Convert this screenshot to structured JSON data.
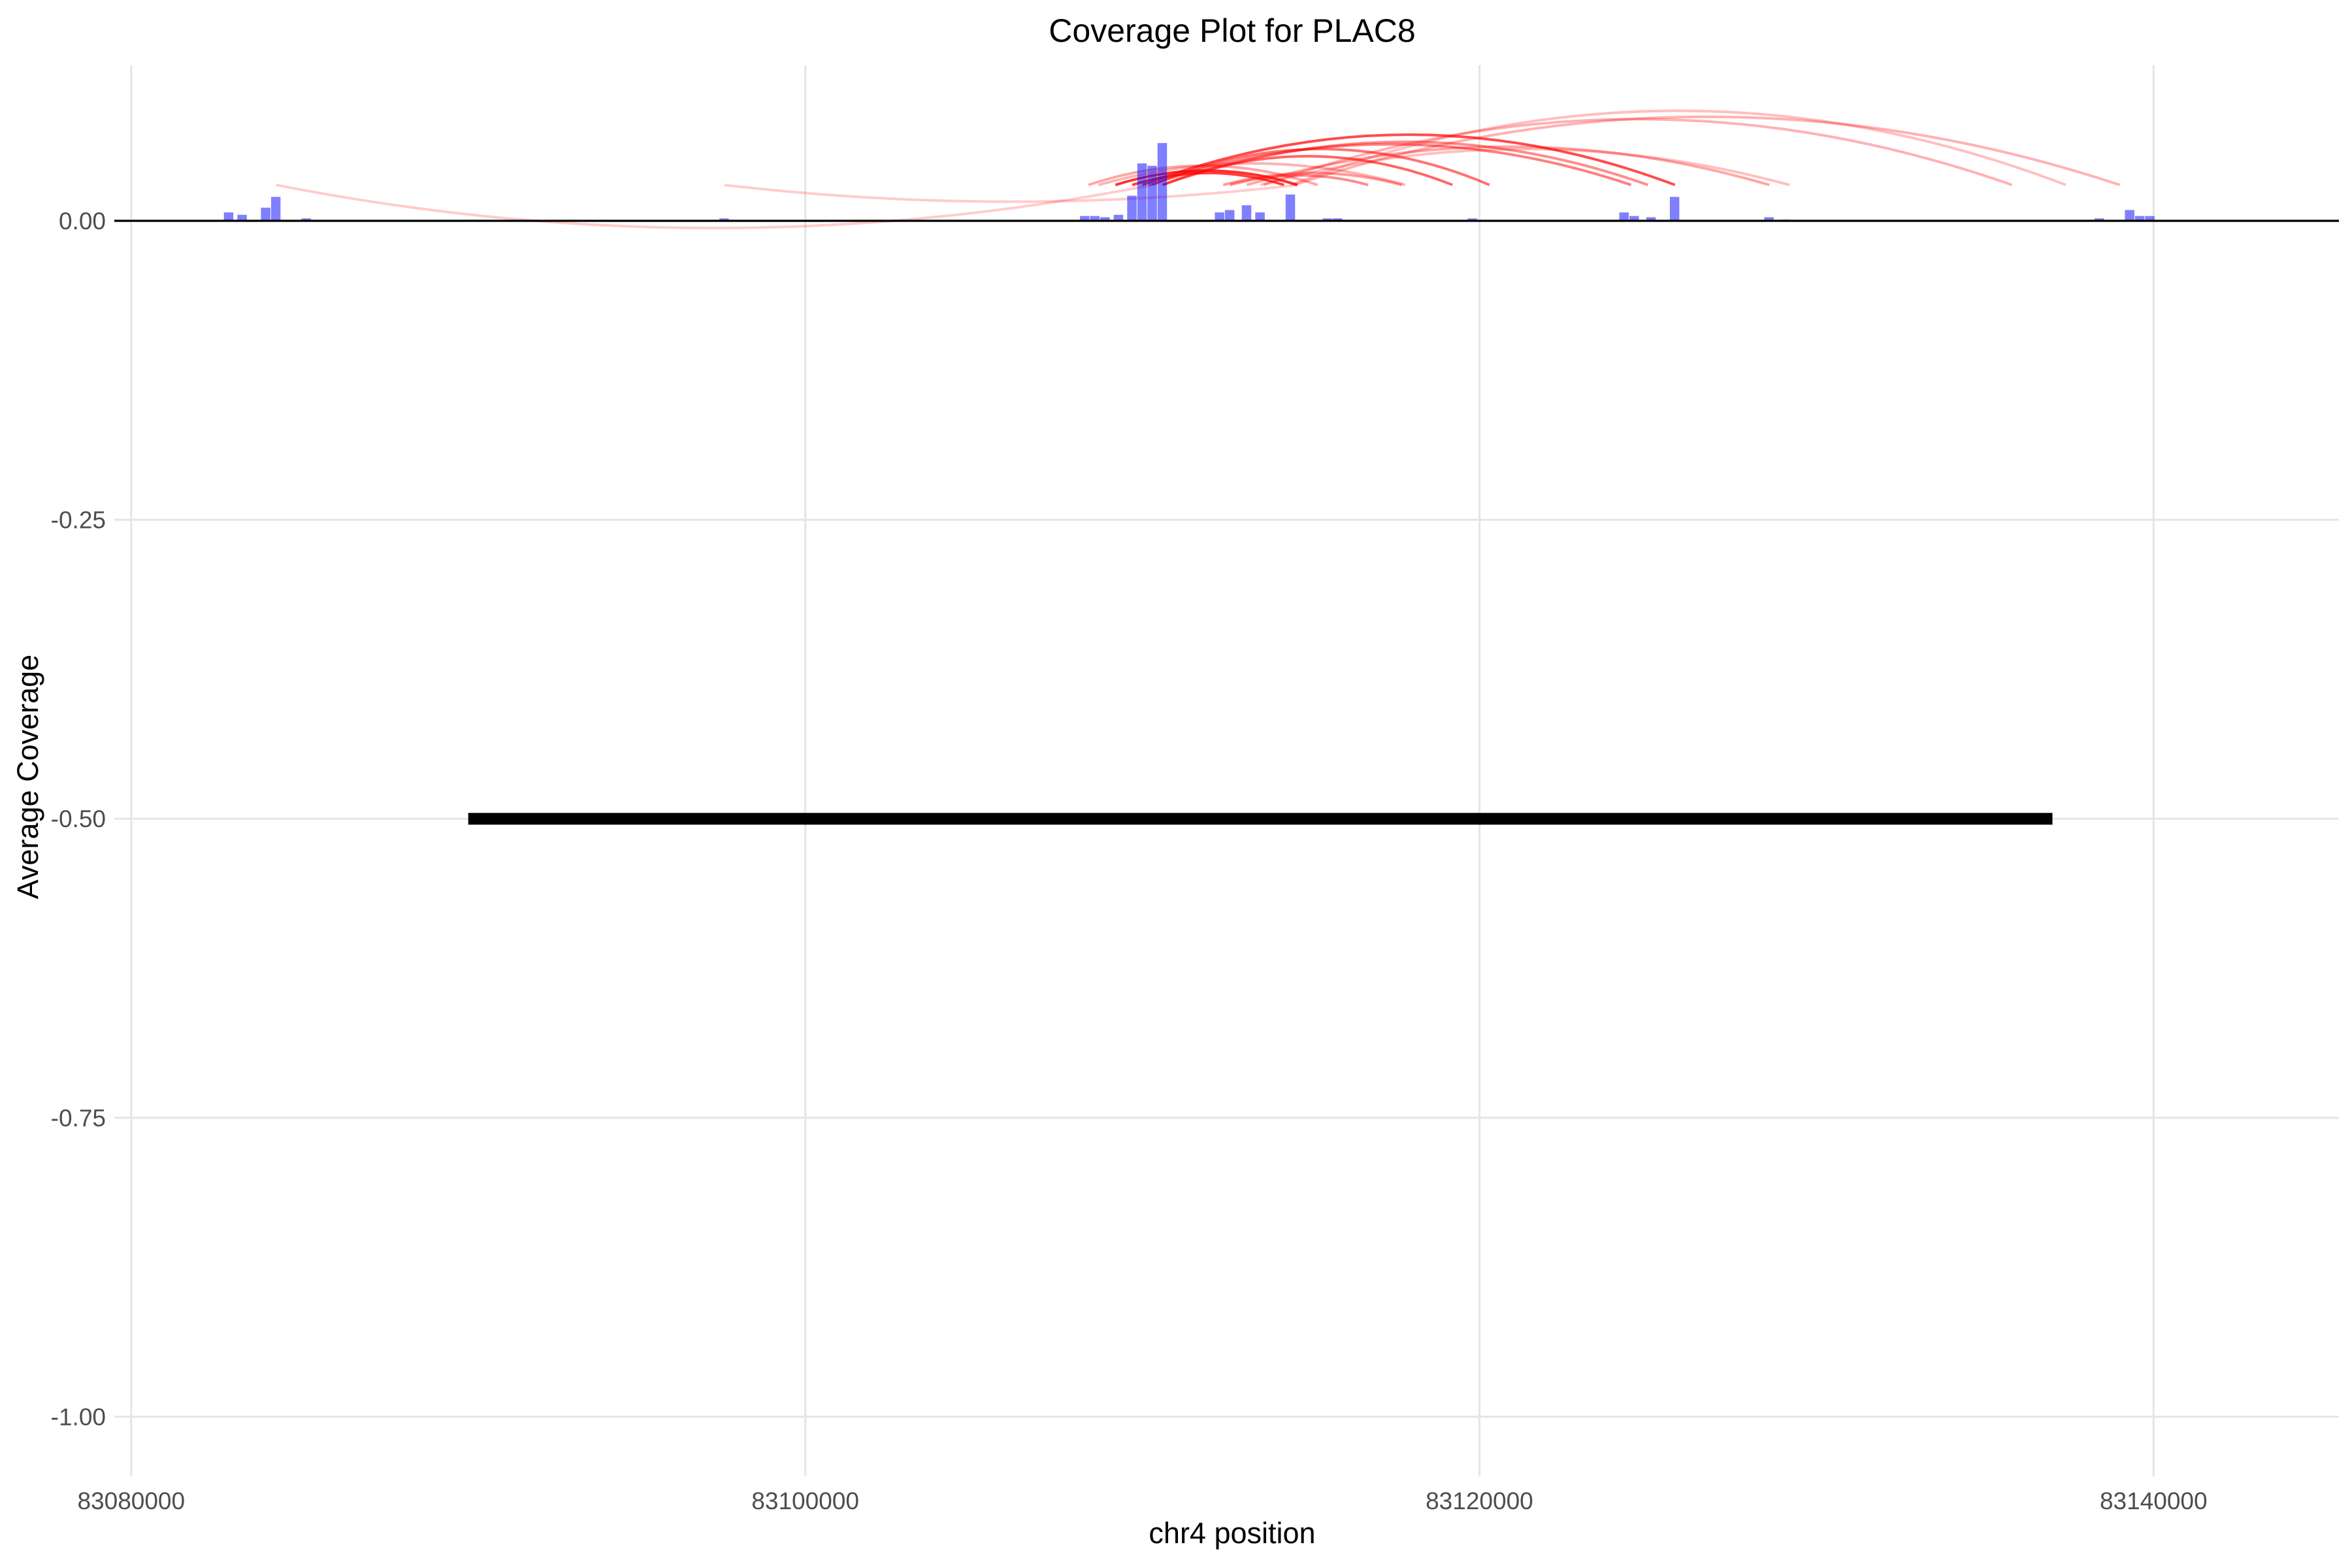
{
  "chart_data": {
    "type": "bar",
    "title": "Coverage Plot for PLAC8",
    "xlabel": "chr4 position",
    "ylabel": "Average Coverage",
    "xlim": [
      83079500,
      83145500
    ],
    "ylim": [
      -1.05,
      0.13
    ],
    "x_ticks": [
      83080000,
      83100000,
      83120000,
      83140000
    ],
    "x_tick_labels": [
      "83080000",
      "83100000",
      "83120000",
      "83140000"
    ],
    "y_ticks": [
      0.0,
      -0.25,
      -0.5,
      -0.75,
      -1.0
    ],
    "y_tick_labels": [
      "0.00",
      "-0.25",
      "-0.50",
      "-0.75",
      "-1.00"
    ],
    "grid": true,
    "colors": {
      "coverage": "#0000ff",
      "links": "#ff0000",
      "baseline": "#000000",
      "gene": "#000000",
      "grid": "#e6e6e6",
      "tick_text": "#4d4d4d"
    },
    "coverage_series": {
      "name": "coverage",
      "bin_width": 300,
      "x": [
        83082900,
        83083300,
        83084000,
        83084300,
        83085200,
        83097600,
        83108300,
        83108600,
        83108900,
        83109300,
        83109700,
        83110000,
        83110300,
        83110600,
        83112300,
        83112600,
        83113100,
        83113500,
        83114400,
        83115500,
        83115800,
        83119800,
        83124300,
        83124600,
        83125100,
        83125800,
        83128600,
        83129100,
        83138400,
        83139300,
        83139600,
        83139900
      ],
      "values": [
        0.007,
        0.005,
        0.011,
        0.02,
        0.002,
        0.002,
        0.004,
        0.004,
        0.003,
        0.005,
        0.021,
        0.048,
        0.046,
        0.065,
        0.007,
        0.009,
        0.013,
        0.007,
        0.022,
        0.002,
        0.002,
        0.002,
        0.007,
        0.004,
        0.003,
        0.02,
        0.003,
        0.001,
        0.002,
        0.009,
        0.004,
        0.004
      ]
    },
    "links": [
      {
        "start": 83084300,
        "end": 83110300,
        "height": -0.036,
        "alpha": 0.2
      },
      {
        "start": 83097600,
        "end": 83114600,
        "height": -0.014,
        "alpha": 0.2
      },
      {
        "start": 83108400,
        "end": 83115200,
        "height": 0.016,
        "alpha": 0.35
      },
      {
        "start": 83108700,
        "end": 83117800,
        "height": 0.018,
        "alpha": 0.3
      },
      {
        "start": 83109200,
        "end": 83114600,
        "height": 0.012,
        "alpha": 0.8
      },
      {
        "start": 83109700,
        "end": 83114200,
        "height": 0.01,
        "alpha": 0.75
      },
      {
        "start": 83110000,
        "end": 83125800,
        "height": 0.042,
        "alpha": 0.7
      },
      {
        "start": 83110300,
        "end": 83120300,
        "height": 0.03,
        "alpha": 0.55
      },
      {
        "start": 83110600,
        "end": 83119200,
        "height": 0.024,
        "alpha": 0.6
      },
      {
        "start": 83110200,
        "end": 83124500,
        "height": 0.034,
        "alpha": 0.5
      },
      {
        "start": 83110600,
        "end": 83125000,
        "height": 0.036,
        "alpha": 0.45
      },
      {
        "start": 83112400,
        "end": 83117700,
        "height": 0.01,
        "alpha": 0.4
      },
      {
        "start": 83112600,
        "end": 83116700,
        "height": 0.008,
        "alpha": 0.45
      },
      {
        "start": 83113100,
        "end": 83128600,
        "height": 0.032,
        "alpha": 0.35
      },
      {
        "start": 83113500,
        "end": 83129200,
        "height": 0.03,
        "alpha": 0.25
      },
      {
        "start": 83113600,
        "end": 83135800,
        "height": 0.055,
        "alpha": 0.3
      },
      {
        "start": 83114500,
        "end": 83139000,
        "height": 0.057,
        "alpha": 0.3
      },
      {
        "start": 83114400,
        "end": 83137400,
        "height": 0.062,
        "alpha": 0.25
      }
    ],
    "gene": {
      "name": "PLAC8",
      "start": 83090000,
      "end": 83137000,
      "y": -0.5
    }
  }
}
